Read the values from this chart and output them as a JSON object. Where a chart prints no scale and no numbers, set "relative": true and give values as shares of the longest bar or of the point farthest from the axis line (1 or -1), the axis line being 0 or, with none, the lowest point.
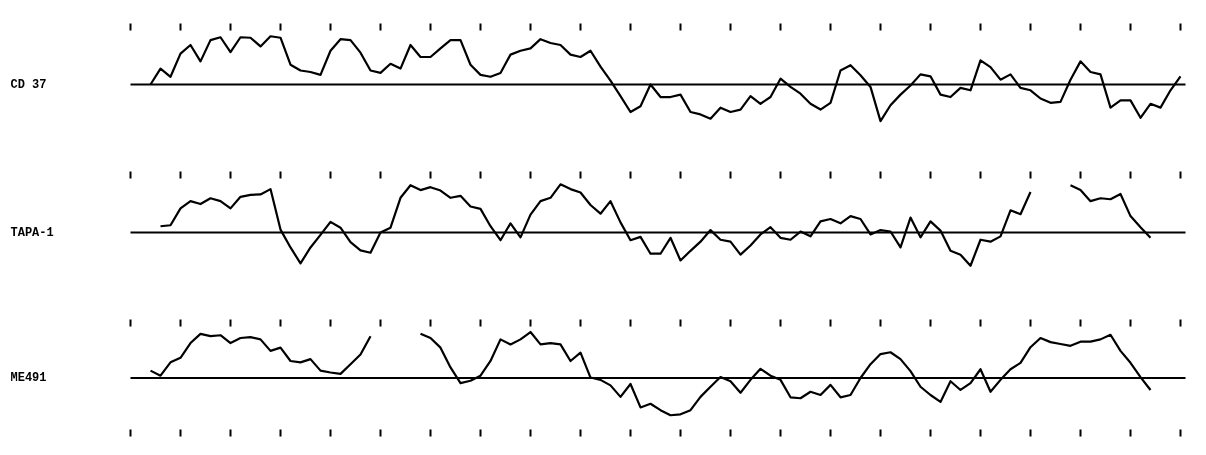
{
  "chart_data": [
    {
      "type": "line",
      "relative": true,
      "categories": [
        null,
        null,
        null,
        null,
        null,
        null,
        null,
        null,
        null,
        null,
        null,
        null,
        null,
        null,
        null,
        null,
        null,
        null,
        null,
        null,
        null,
        null,
        null,
        null,
        null,
        null,
        null,
        null,
        null,
        null,
        null,
        null,
        null,
        null,
        null,
        null,
        null,
        null,
        null,
        null,
        null,
        null,
        null,
        null,
        null,
        null,
        null,
        null,
        null,
        null,
        null,
        null,
        null,
        null,
        null,
        null,
        null,
        null,
        null,
        null,
        null,
        null,
        null,
        null,
        null,
        null,
        null,
        null,
        null,
        null,
        null,
        null,
        null,
        null,
        null,
        null,
        null,
        null,
        null,
        null,
        null,
        null,
        null,
        null,
        null,
        null,
        null,
        null,
        null,
        null,
        null,
        null,
        null,
        null,
        null,
        null,
        null,
        null,
        null,
        null,
        null,
        null,
        null,
        null,
        null,
        null
      ],
      "series": [
        {
          "name": "CD 37",
          "color": "#000000",
          "values": [
            null,
            null,
            0,
            0.33,
            0.16,
            0.64,
            0.82,
            0.48,
            0.92,
            0.98,
            0.67,
            0.98,
            0.97,
            0.79,
            1,
            0.97,
            0.41,
            0.29,
            0.26,
            0.2,
            0.7,
            0.94,
            0.92,
            0.66,
            0.29,
            0.24,
            0.43,
            0.33,
            0.82,
            0.57,
            0.57,
            0.75,
            0.92,
            0.92,
            0.41,
            0.2,
            0.16,
            0.24,
            0.62,
            0.7,
            0.75,
            0.94,
            0.86,
            0.82,
            0.62,
            0.57,
            0.7,
            0.37,
            0.08,
            -0.24,
            -0.57,
            -0.45,
            0,
            -0.26,
            -0.26,
            -0.21,
            -0.57,
            -0.62,
            -0.71,
            -0.48,
            -0.57,
            -0.52,
            -0.24,
            -0.4,
            -0.26,
            0.12,
            -0.05,
            -0.19,
            -0.4,
            -0.52,
            -0.38,
            0.29,
            0.4,
            0.19,
            -0.05,
            -0.76,
            -0.43,
            -0.21,
            -0.02,
            0.21,
            0.17,
            -0.21,
            -0.26,
            -0.07,
            -0.12,
            0.5,
            0.36,
            0.1,
            0.21,
            -0.07,
            -0.12,
            -0.29,
            -0.38,
            -0.36,
            0.1,
            0.48,
            0.26,
            0.21,
            -0.48,
            -0.33,
            -0.33,
            -0.69,
            -0.4,
            -0.48,
            -0.12,
            0.17
          ]
        }
      ]
    },
    {
      "type": "line",
      "relative": true,
      "categories": [
        null,
        null,
        null,
        null,
        null,
        null,
        null,
        null,
        null,
        null,
        null,
        null,
        null,
        null,
        null,
        null,
        null,
        null,
        null,
        null,
        null,
        null,
        null,
        null,
        null,
        null,
        null,
        null,
        null,
        null,
        null,
        null,
        null,
        null,
        null,
        null,
        null,
        null,
        null,
        null,
        null,
        null,
        null,
        null,
        null,
        null,
        null,
        null,
        null,
        null,
        null,
        null,
        null,
        null,
        null,
        null,
        null,
        null,
        null,
        null,
        null,
        null,
        null,
        null,
        null,
        null,
        null,
        null,
        null,
        null,
        null,
        null,
        null,
        null,
        null,
        null,
        null,
        null,
        null,
        null,
        null,
        null,
        null,
        null,
        null,
        null,
        null,
        null,
        null,
        null,
        null,
        null,
        null,
        null,
        null,
        null,
        null,
        null,
        null,
        null,
        null,
        null,
        null,
        null,
        null,
        null
      ],
      "series": [
        {
          "name": "TAPA-1",
          "color": "#000000",
          "values": [
            null,
            null,
            null,
            0.13,
            0.15,
            0.5,
            0.65,
            0.59,
            0.71,
            0.65,
            0.5,
            0.74,
            0.78,
            0.79,
            0.9,
            0.06,
            -0.31,
            -0.64,
            -0.31,
            -0.05,
            0.22,
            0.1,
            -0.2,
            -0.37,
            -0.42,
            0,
            0.1,
            0.72,
            0.98,
            0.88,
            0.94,
            0.87,
            0.72,
            0.76,
            0.54,
            0.49,
            0.13,
            -0.16,
            0.19,
            -0.1,
            0.37,
            0.65,
            0.72,
            1,
            0.9,
            0.83,
            0.57,
            0.39,
            0.65,
            0.21,
            -0.16,
            -0.09,
            -0.44,
            -0.44,
            -0.11,
            -0.58,
            -0.38,
            -0.19,
            0.05,
            -0.15,
            -0.19,
            -0.46,
            -0.27,
            -0.04,
            0.11,
            -0.11,
            -0.15,
            0.02,
            -0.08,
            0.23,
            0.28,
            0.19,
            0.34,
            0.28,
            -0.04,
            0.05,
            0.02,
            -0.31,
            0.31,
            -0.1,
            0.23,
            0.04,
            -0.38,
            -0.46,
            -0.69,
            -0.15,
            -0.19,
            -0.08,
            0.46,
            0.38,
            0.84,
            null,
            null,
            null,
            0.98,
            0.88,
            0.65,
            0.71,
            0.69,
            0.8,
            0.34,
            0.11,
            -0.11,
            null,
            null,
            null
          ]
        }
      ]
    },
    {
      "type": "line",
      "relative": true,
      "categories": [
        null,
        null,
        null,
        null,
        null,
        null,
        null,
        null,
        null,
        null,
        null,
        null,
        null,
        null,
        null,
        null,
        null,
        null,
        null,
        null,
        null,
        null,
        null,
        null,
        null,
        null,
        null,
        null,
        null,
        null,
        null,
        null,
        null,
        null,
        null,
        null,
        null,
        null,
        null,
        null,
        null,
        null,
        null,
        null,
        null,
        null,
        null,
        null,
        null,
        null,
        null,
        null,
        null,
        null,
        null,
        null,
        null,
        null,
        null,
        null,
        null,
        null,
        null,
        null,
        null,
        null,
        null,
        null,
        null,
        null,
        null,
        null,
        null,
        null,
        null,
        null,
        null,
        null,
        null,
        null,
        null,
        null,
        null,
        null,
        null,
        null,
        null,
        null,
        null,
        null,
        null,
        null,
        null,
        null,
        null,
        null,
        null,
        null,
        null,
        null,
        null,
        null,
        null,
        null,
        null,
        null
      ],
      "series": [
        {
          "name": "ME491",
          "color": "#000000",
          "values": [
            null,
            null,
            0.16,
            0.05,
            0.34,
            0.44,
            0.76,
            0.96,
            0.91,
            0.93,
            0.76,
            0.87,
            0.89,
            0.84,
            0.59,
            0.66,
            0.37,
            0.34,
            0.41,
            0.16,
            0.12,
            0.09,
            0.3,
            0.51,
            0.91,
            null,
            null,
            null,
            null,
            0.96,
            0.87,
            0.66,
            0.23,
            -0.11,
            -0.06,
            0.05,
            0.37,
            0.84,
            0.73,
            0.84,
            1,
            0.73,
            0.76,
            0.73,
            0.37,
            0.55,
            0.01,
            -0.04,
            -0.16,
            -0.41,
            -0.13,
            -0.64,
            -0.56,
            -0.7,
            -0.81,
            -0.79,
            -0.7,
            -0.41,
            -0.19,
            0.02,
            -0.07,
            -0.32,
            -0.04,
            0.2,
            0.05,
            -0.04,
            -0.42,
            -0.44,
            -0.3,
            -0.37,
            -0.15,
            -0.42,
            -0.37,
            0,
            0.3,
            0.52,
            0.56,
            0.41,
            0.15,
            -0.19,
            -0.37,
            -0.52,
            -0.07,
            -0.26,
            -0.11,
            0.19,
            -0.3,
            -0.04,
            0.19,
            0.33,
            0.67,
            0.87,
            0.78,
            0.74,
            0.7,
            0.79,
            0.79,
            0.84,
            0.94,
            0.59,
            0.33,
            0.02,
            -0.26,
            null,
            null,
            null
          ]
        }
      ]
    }
  ]
}
